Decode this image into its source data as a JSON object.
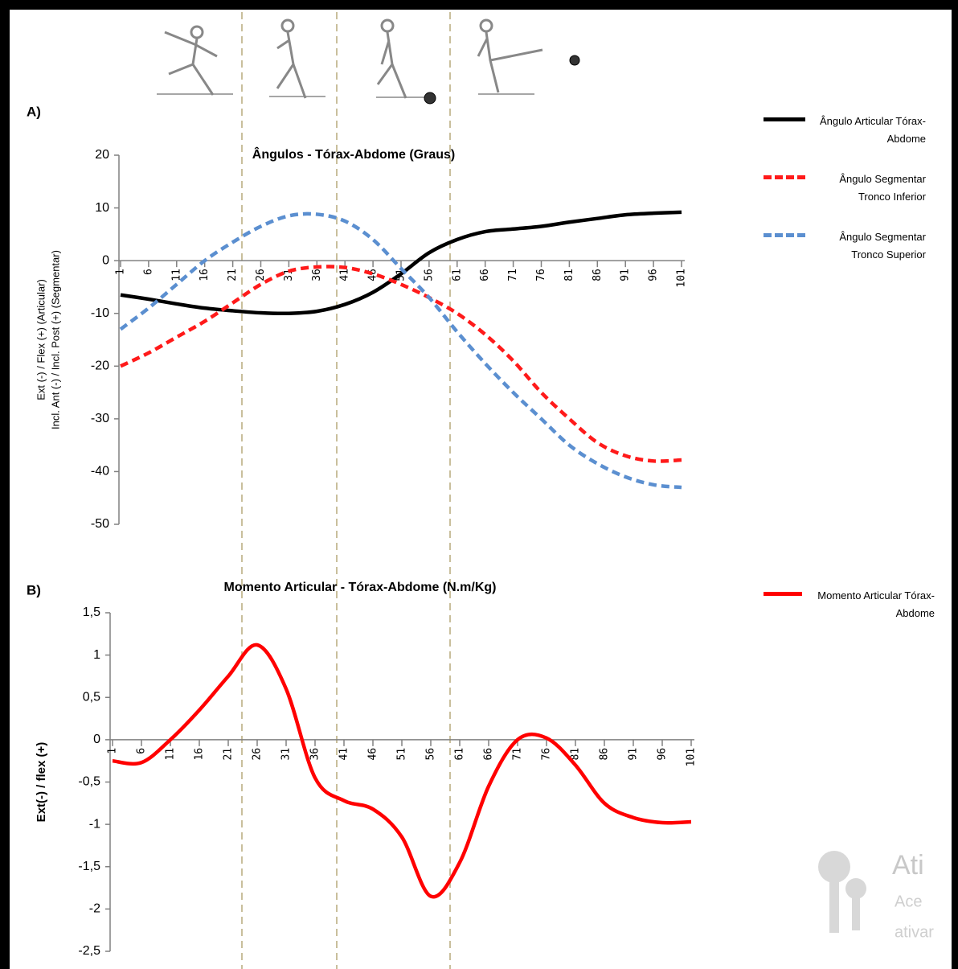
{
  "chart_data": [
    {
      "type": "line",
      "panel": "A)",
      "title": "Ângulos - Tórax-Abdome (Graus)",
      "ylabel": [
        "Ext (-) / Flex (+) (Articular)",
        "Incl. Ant (-) / Incl. Post (+) (Segmentar)"
      ],
      "x": [
        1,
        6,
        11,
        16,
        21,
        26,
        31,
        36,
        41,
        46,
        51,
        56,
        61,
        66,
        71,
        76,
        81,
        86,
        91,
        96,
        101
      ],
      "xlim": [
        1,
        101
      ],
      "xticks": [
        1,
        6,
        11,
        16,
        21,
        26,
        31,
        36,
        41,
        46,
        51,
        56,
        61,
        66,
        71,
        76,
        81,
        86,
        91,
        96,
        101
      ],
      "ylim": [
        -50,
        20
      ],
      "yticks": [
        -50,
        -40,
        -30,
        -20,
        -10,
        0,
        10,
        20
      ],
      "legend": "right",
      "series": [
        {
          "name": "Ângulo Articular Tórax-Abdome",
          "color": "#000000",
          "style": "solid",
          "values": [
            -6.5,
            -7.3,
            -8.2,
            -9,
            -9.5,
            -9.9,
            -10,
            -9.6,
            -8.3,
            -6,
            -2.5,
            1.5,
            4,
            5.5,
            6,
            6.5,
            7.3,
            8,
            8.7,
            9,
            9.2
          ]
        },
        {
          "name": "Ângulo Segmentar Tronco Inferior",
          "color": "#ff1a1a",
          "style": "dashed",
          "values": [
            -20,
            -17.5,
            -14.5,
            -11.5,
            -8,
            -4.5,
            -2,
            -1.2,
            -1.3,
            -2.5,
            -4.5,
            -7,
            -10,
            -14,
            -19,
            -25,
            -30,
            -34.5,
            -37,
            -38,
            -37.8
          ]
        },
        {
          "name": "Ângulo Segmentar Tronco Superior",
          "color": "#5b8fd0",
          "style": "dashed",
          "values": [
            -13,
            -9,
            -4.5,
            0,
            3.5,
            6.5,
            8.5,
            8.8,
            7.5,
            4,
            -1.5,
            -7,
            -13.5,
            -19.5,
            -25,
            -30,
            -35,
            -38.5,
            -41,
            -42.5,
            -43
          ]
        }
      ]
    },
    {
      "type": "line",
      "panel": "B)",
      "title": "Momento Articular - Tórax-Abdome (N.m/Kg)",
      "ylabel": [
        "Ext(-) / flex (+)"
      ],
      "x": [
        1,
        6,
        11,
        16,
        21,
        26,
        31,
        36,
        41,
        46,
        51,
        56,
        61,
        66,
        71,
        76,
        81,
        86,
        91,
        96,
        101
      ],
      "xlim": [
        1,
        101
      ],
      "xticks": [
        1,
        6,
        11,
        16,
        21,
        26,
        31,
        36,
        41,
        46,
        51,
        56,
        61,
        66,
        71,
        76,
        81,
        86,
        91,
        96,
        101
      ],
      "ylim": [
        -2.5,
        1.5
      ],
      "yticks": [
        {
          "value": -2.5,
          "label": "-2,5"
        },
        -2,
        {
          "value": -1.5,
          "label": "-1,5"
        },
        -1,
        {
          "value": -0.5,
          "label": "-0,5"
        },
        0,
        {
          "value": 0.5,
          "label": "0,5"
        },
        1,
        {
          "value": 1.5,
          "label": "1,5"
        }
      ],
      "legend": "right",
      "series": [
        {
          "name": "Momento Articular Tórax-Abdome",
          "color": "#ff0000",
          "style": "solid",
          "values": [
            -0.25,
            -0.27,
            0,
            0.35,
            0.75,
            1.12,
            0.6,
            -0.45,
            -0.72,
            -0.82,
            -1.15,
            -1.85,
            -1.45,
            -0.55,
            0,
            0.02,
            -0.3,
            -0.75,
            -0.92,
            -0.98,
            -0.97
          ]
        }
      ]
    }
  ],
  "watermark": [
    "Ati",
    "Ace",
    "ativar"
  ]
}
